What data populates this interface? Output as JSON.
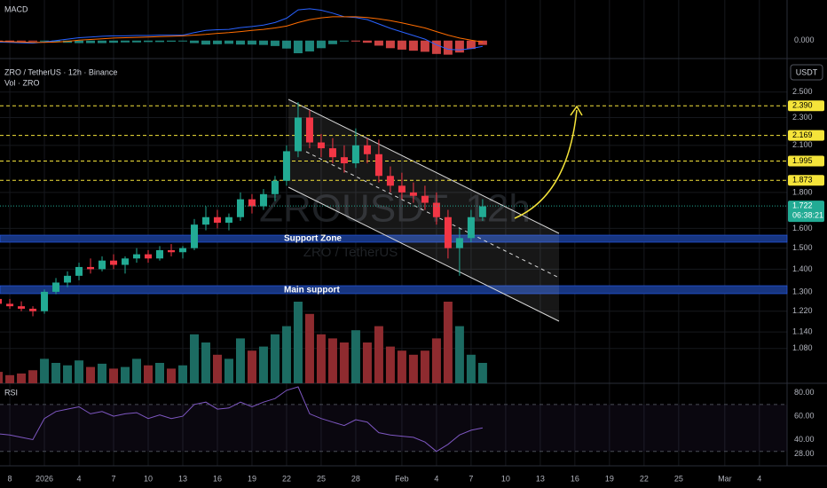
{
  "chart_data": {
    "type": "candlestick",
    "title": "ZRO / TetherUS · 12h · Binance",
    "volume_label": "Vol · ZRO",
    "currency": "USDT",
    "watermark": "ZROUSDT, 12h",
    "watermark_sub": "ZRO / TetherUS",
    "x": [
      -4,
      -3,
      -2,
      -1,
      0,
      1,
      2,
      3,
      4,
      5,
      6,
      7,
      8,
      9,
      10,
      11,
      12,
      13,
      14,
      15,
      16,
      17,
      18,
      19,
      20,
      21,
      22,
      23,
      24,
      25,
      26,
      27,
      28,
      29,
      30,
      31,
      32,
      33,
      34,
      35,
      36,
      37,
      38
    ],
    "open": [
      1.27,
      1.25,
      1.24,
      1.23,
      1.22,
      1.3,
      1.34,
      1.37,
      1.41,
      1.4,
      1.44,
      1.42,
      1.45,
      1.47,
      1.45,
      1.49,
      1.48,
      1.5,
      1.62,
      1.66,
      1.63,
      1.66,
      1.76,
      1.72,
      1.79,
      1.87,
      2.06,
      2.3,
      2.12,
      2.08,
      2.02,
      1.98,
      2.1,
      2.04,
      1.9,
      1.84,
      1.8,
      1.78,
      1.74,
      1.66,
      1.5,
      1.55,
      1.66
    ],
    "high": [
      1.28,
      1.27,
      1.26,
      1.24,
      1.31,
      1.36,
      1.39,
      1.43,
      1.45,
      1.46,
      1.47,
      1.46,
      1.5,
      1.49,
      1.51,
      1.52,
      1.51,
      1.65,
      1.72,
      1.7,
      1.68,
      1.8,
      1.79,
      1.82,
      1.9,
      2.1,
      2.42,
      2.36,
      2.18,
      2.15,
      2.1,
      2.22,
      2.15,
      2.14,
      1.96,
      1.92,
      1.86,
      1.84,
      1.8,
      1.7,
      1.6,
      1.7,
      1.76
    ],
    "low": [
      1.24,
      1.23,
      1.22,
      1.2,
      1.21,
      1.29,
      1.32,
      1.35,
      1.38,
      1.39,
      1.4,
      1.38,
      1.43,
      1.43,
      1.44,
      1.46,
      1.45,
      1.49,
      1.59,
      1.6,
      1.59,
      1.64,
      1.68,
      1.7,
      1.75,
      1.84,
      2.02,
      2.08,
      2.02,
      1.98,
      1.92,
      1.95,
      1.98,
      1.86,
      1.8,
      1.76,
      1.74,
      1.7,
      1.62,
      1.45,
      1.37,
      1.53,
      1.64
    ],
    "close": [
      1.25,
      1.24,
      1.23,
      1.22,
      1.3,
      1.34,
      1.37,
      1.41,
      1.4,
      1.44,
      1.42,
      1.45,
      1.47,
      1.45,
      1.49,
      1.48,
      1.5,
      1.62,
      1.66,
      1.63,
      1.66,
      1.76,
      1.72,
      1.79,
      1.87,
      2.06,
      2.3,
      2.12,
      2.08,
      2.02,
      1.98,
      2.1,
      2.04,
      1.9,
      1.84,
      1.8,
      1.78,
      1.74,
      1.66,
      1.5,
      1.55,
      1.66,
      1.72
    ],
    "volume": [
      14,
      10,
      12,
      16,
      30,
      25,
      22,
      28,
      20,
      24,
      18,
      20,
      30,
      22,
      25,
      18,
      22,
      60,
      50,
      35,
      30,
      55,
      40,
      45,
      60,
      70,
      100,
      85,
      60,
      55,
      50,
      65,
      50,
      70,
      45,
      40,
      35,
      40,
      55,
      100,
      70,
      35,
      25
    ],
    "up_color": "#22ab94",
    "down_color": "#f23645",
    "volume_up_color": "#1c6b62",
    "volume_down_color": "#8e2b2f",
    "xlim": [
      -3.85,
      64.4
    ],
    "xticks": [
      {
        "value": -3,
        "label": "8"
      },
      {
        "value": 0,
        "label": "2026"
      },
      {
        "value": 3,
        "label": "4"
      },
      {
        "value": 6,
        "label": "7"
      },
      {
        "value": 9,
        "label": "10"
      },
      {
        "value": 12,
        "label": "13"
      },
      {
        "value": 15,
        "label": "16"
      },
      {
        "value": 18,
        "label": "19"
      },
      {
        "value": 21,
        "label": "22"
      },
      {
        "value": 24,
        "label": "25"
      },
      {
        "value": 27,
        "label": "28"
      },
      {
        "value": 31,
        "label": "Feb"
      },
      {
        "value": 34,
        "label": "4"
      },
      {
        "value": 37,
        "label": "7"
      },
      {
        "value": 40,
        "label": "10"
      },
      {
        "value": 43,
        "label": "13"
      },
      {
        "value": 46,
        "label": "16"
      },
      {
        "value": 49,
        "label": "19"
      },
      {
        "value": 52,
        "label": "22"
      },
      {
        "value": 55,
        "label": "25"
      },
      {
        "value": 59,
        "label": "Mar"
      },
      {
        "value": 62,
        "label": "4"
      }
    ],
    "ylim": [
      0.9635,
      2.774
    ],
    "log_scale": true,
    "grid": true,
    "yticks": [
      {
        "value": 2.5,
        "label": "2.500"
      },
      {
        "value": 2.3,
        "label": "2.300"
      },
      {
        "value": 2.1,
        "label": "2.100"
      },
      {
        "value": 1.8,
        "label": "1.800"
      },
      {
        "value": 1.6,
        "label": "1.600"
      },
      {
        "value": 1.5,
        "label": "1.500"
      },
      {
        "value": 1.4,
        "label": "1.400"
      },
      {
        "value": 1.3,
        "label": "1.300"
      },
      {
        "value": 1.22,
        "label": "1.220"
      },
      {
        "value": 1.14,
        "label": "1.140"
      },
      {
        "value": 1.08,
        "label": "1.080"
      }
    ],
    "levels": [
      {
        "value": 2.39,
        "label": "2.390"
      },
      {
        "value": 2.169,
        "label": "2.169"
      },
      {
        "value": 1.995,
        "label": "1.995"
      },
      {
        "value": 1.873,
        "label": "1.873"
      }
    ],
    "level_color": "#f5e43a",
    "last_price": {
      "value": 1.722,
      "label": "1.722"
    },
    "countdown": "06:38:21",
    "annotations": [
      "Support Zone",
      "Main support"
    ],
    "macd": {
      "title": "MACD",
      "macd": [
        -0.004,
        -0.005,
        -0.006,
        -0.007,
        -0.004,
        0,
        0.004,
        0.008,
        0.01,
        0.012,
        0.013,
        0.013,
        0.014,
        0.014,
        0.015,
        0.015,
        0.015,
        0.022,
        0.028,
        0.03,
        0.031,
        0.036,
        0.039,
        0.043,
        0.05,
        0.062,
        0.085,
        0.088,
        0.084,
        0.076,
        0.066,
        0.064,
        0.058,
        0.046,
        0.034,
        0.024,
        0.014,
        0.004,
        -0.012,
        -0.024,
        -0.026,
        -0.022,
        -0.016
      ],
      "signal": [
        -0.002,
        -0.003,
        -0.004,
        -0.005,
        -0.005,
        -0.004,
        -0.002,
        0.001,
        0.003,
        0.005,
        0.007,
        0.008,
        0.009,
        0.01,
        0.011,
        0.012,
        0.013,
        0.015,
        0.017,
        0.02,
        0.022,
        0.025,
        0.028,
        0.031,
        0.035,
        0.04,
        0.05,
        0.058,
        0.063,
        0.066,
        0.066,
        0.066,
        0.064,
        0.06,
        0.055,
        0.049,
        0.042,
        0.035,
        0.025,
        0.015,
        0.007,
        0.001,
        -0.004
      ],
      "macd_color": "#2962ff",
      "signal_color": "#ff6d00",
      "ylim": [
        -0.035,
        0.1
      ],
      "yticks": [
        {
          "value": 0,
          "label": "0.000"
        }
      ]
    },
    "rsi": {
      "title": "RSI",
      "values": [
        45,
        44,
        42,
        40,
        58,
        64,
        66,
        68,
        62,
        64,
        60,
        62,
        63,
        58,
        61,
        58,
        60,
        70,
        72,
        66,
        67,
        72,
        68,
        72,
        75,
        82,
        85,
        62,
        58,
        55,
        52,
        57,
        55,
        46,
        44,
        43,
        42,
        38,
        30,
        36,
        44,
        48,
        50
      ],
      "color": "#7e57c2",
      "bands": [
        30,
        70
      ],
      "ylim": [
        20,
        88
      ],
      "yticks": [
        {
          "value": 80,
          "label": "80.00"
        },
        {
          "value": 60,
          "label": "60.00"
        },
        {
          "value": 40,
          "label": "40.00"
        },
        {
          "value": 28,
          "label": "28.00"
        }
      ]
    }
  }
}
